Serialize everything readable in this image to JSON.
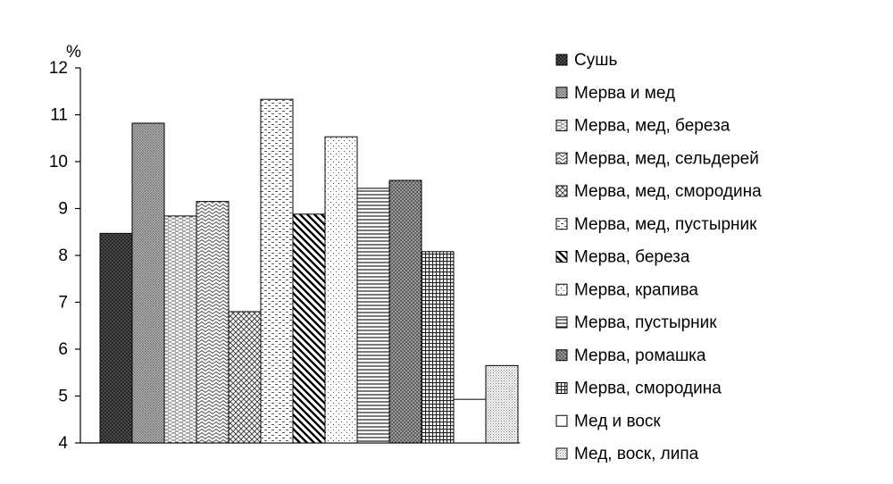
{
  "chart_data": {
    "type": "bar",
    "ylabel": "%",
    "ylim": [
      4,
      12
    ],
    "yticks": [
      4,
      5,
      6,
      7,
      8,
      9,
      10,
      11,
      12
    ],
    "grid": false,
    "legend_position": "right",
    "series": [
      {
        "name": "Сушь",
        "value": 8.47,
        "pattern": "crosshatch-dense-dark"
      },
      {
        "name": "Мерва и мед",
        "value": 10.82,
        "pattern": "dots-medium-gray"
      },
      {
        "name": "Мерва, мед, береза",
        "value": 8.84,
        "pattern": "horizontal-dashes"
      },
      {
        "name": "Мерва, мед, сельдерей",
        "value": 9.15,
        "pattern": "wave"
      },
      {
        "name": "Мерва, мед, смородина",
        "value": 6.8,
        "pattern": "diagonal-crosshatch"
      },
      {
        "name": "Мерва, мед, пустырник",
        "value": 11.33,
        "pattern": "dashed-brick"
      },
      {
        "name": "Мерва, береза",
        "value": 8.88,
        "pattern": "wide-downward-diagonal"
      },
      {
        "name": "Мерва, крапива",
        "value": 10.53,
        "pattern": "sparse-dots"
      },
      {
        "name": "Мерва, пустырник",
        "value": 9.43,
        "pattern": "horizontal-lines"
      },
      {
        "name": "Мерва, ромашка",
        "value": 9.6,
        "pattern": "sphere"
      },
      {
        "name": "Мерва, смородина",
        "value": 8.08,
        "pattern": "small-grid"
      },
      {
        "name": "Мед и воск",
        "value": 4.93,
        "pattern": "none"
      },
      {
        "name": "Мед, воск, липа",
        "value": 5.65,
        "pattern": "fine-dots"
      }
    ]
  }
}
